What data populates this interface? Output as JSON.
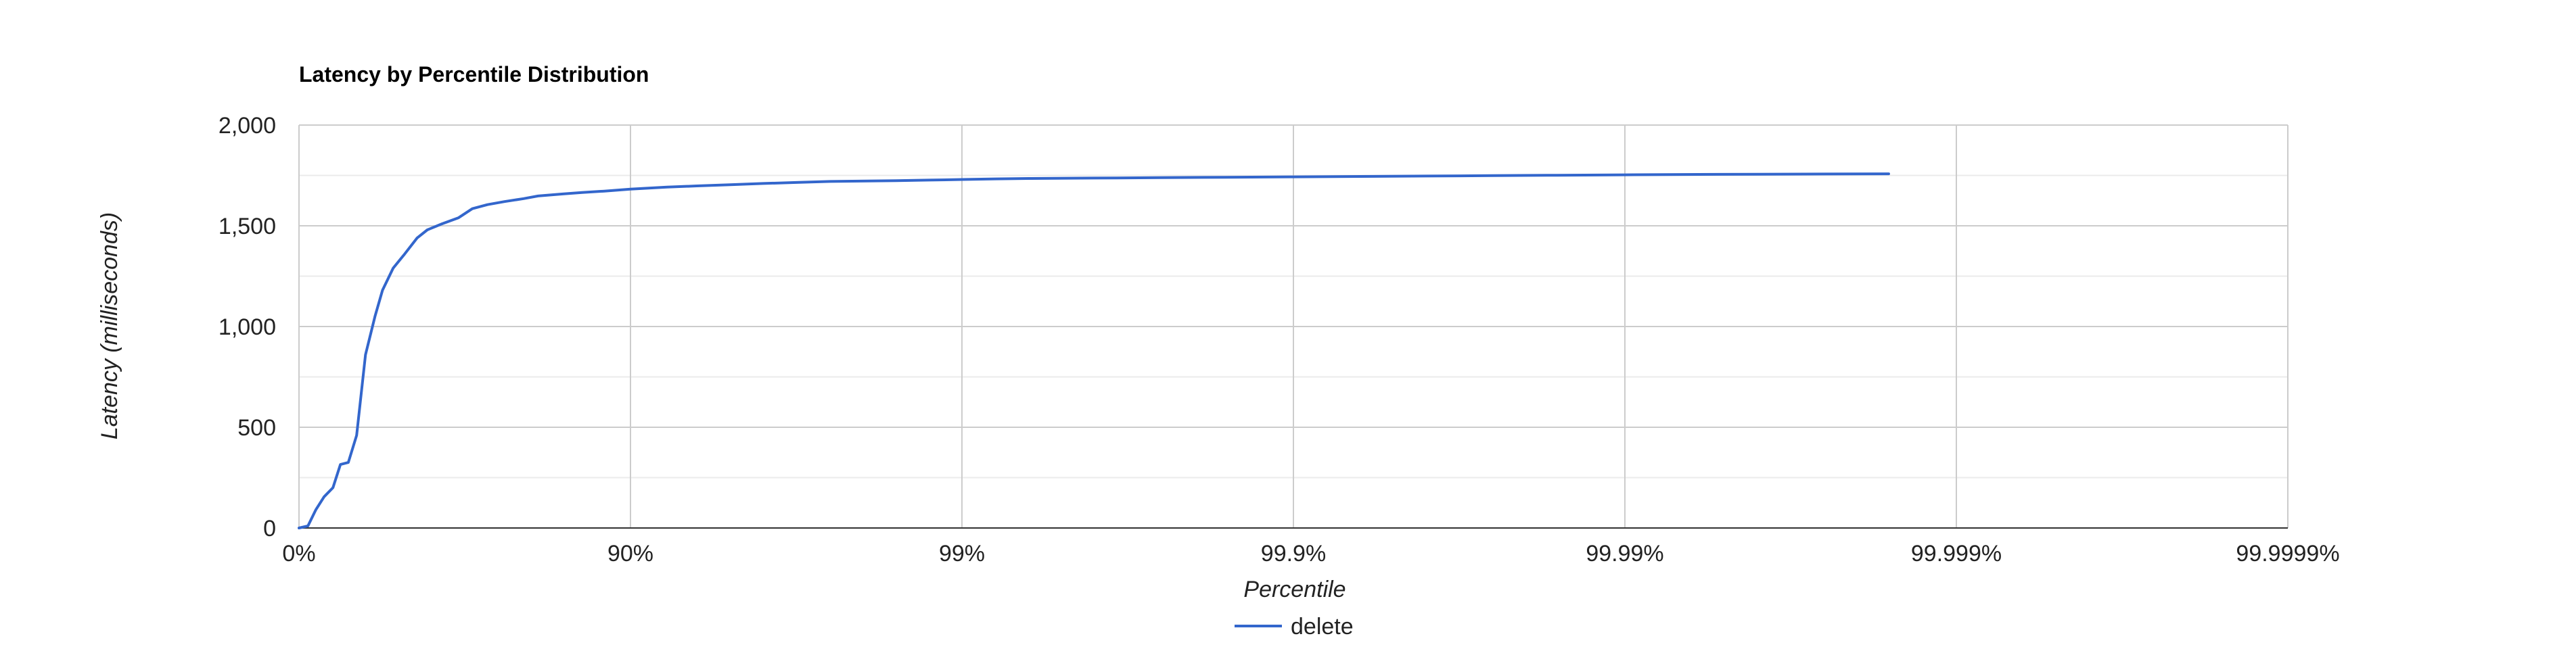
{
  "chart_data": {
    "type": "line",
    "title": "Latency by Percentile Distribution",
    "xlabel": "Percentile",
    "ylabel": "Latency (milliseconds)",
    "x_scale": "log-percentile (nines)",
    "x_ticks": [
      "0%",
      "90%",
      "99%",
      "99.9%",
      "99.99%",
      "99.999%",
      "99.9999%"
    ],
    "y_ticks": [
      "0",
      "500",
      "1,000",
      "1,500",
      "2,000"
    ],
    "ylim": [
      0,
      2000
    ],
    "grid": true,
    "legend_position": "bottom",
    "colors": {
      "series": "#3366cc",
      "grid_major": "#cccccc",
      "grid_minor": "#ebebeb",
      "axis": "#333333"
    },
    "series": [
      {
        "name": "delete",
        "x": [
          0,
          0.06,
          0.11,
          0.16,
          0.21,
          0.25,
          0.29,
          0.33,
          0.37,
          0.41,
          0.44,
          0.48,
          0.52,
          0.56,
          0.59,
          0.63,
          0.67,
          0.7,
          0.73,
          0.76,
          0.79,
          0.81,
          0.84,
          0.86,
          0.88,
          0.9,
          0.9224,
          0.9369,
          0.9499,
          0.9602,
          0.9684,
          0.975,
          0.9842,
          0.9874,
          0.99,
          0.9921,
          0.9937,
          0.996,
          0.9975,
          0.9984,
          0.999,
          0.99937,
          0.9996,
          0.99975,
          0.99984,
          0.9999,
          0.99994,
          0.99996,
          0.999975,
          0.999984
        ],
        "y": [
          0,
          10,
          90,
          155,
          200,
          315,
          325,
          460,
          860,
          1050,
          1180,
          1290,
          1360,
          1440,
          1480,
          1510,
          1540,
          1585,
          1605,
          1620,
          1635,
          1648,
          1658,
          1665,
          1672,
          1682,
          1692,
          1698,
          1704,
          1710,
          1715,
          1720,
          1724,
          1727,
          1730,
          1733,
          1735,
          1737,
          1739,
          1741,
          1743,
          1745,
          1747,
          1749,
          1751,
          1753,
          1755,
          1756,
          1757,
          1758
        ]
      }
    ]
  }
}
